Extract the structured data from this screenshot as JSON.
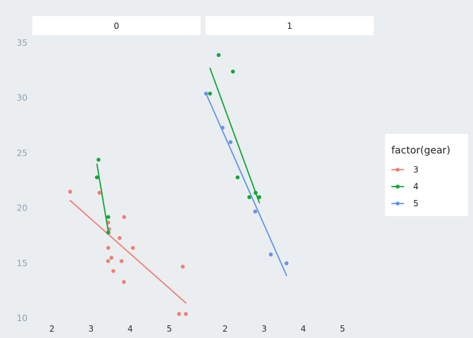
{
  "chart_data": {
    "type": "scatter",
    "facet_var": "am",
    "facets": [
      "0",
      "1"
    ],
    "xlabel": "",
    "ylabel": "",
    "xlim": [
      1.5,
      5.8
    ],
    "ylim": [
      9.5,
      35.7
    ],
    "x_ticks": [
      2,
      3,
      4,
      5
    ],
    "y_ticks": [
      10,
      15,
      20,
      25,
      30,
      35
    ],
    "grid": false,
    "legend": {
      "title": "factor(gear)",
      "position": "right",
      "entries": [
        {
          "label": "3",
          "color": "#F07F74"
        },
        {
          "label": "4",
          "color": "#13A538"
        },
        {
          "label": "5",
          "color": "#6495E8"
        }
      ]
    },
    "series": [
      {
        "name": "3",
        "color": "#F07F74",
        "facet": "0",
        "points": [
          [
            2.465,
            21.5
          ],
          [
            3.215,
            21.4
          ],
          [
            3.44,
            18.7
          ],
          [
            3.46,
            18.1
          ],
          [
            3.57,
            14.3
          ],
          [
            3.44,
            16.4
          ],
          [
            3.73,
            17.3
          ],
          [
            3.78,
            15.2
          ],
          [
            4.07,
            16.4
          ],
          [
            5.25,
            10.4
          ],
          [
            5.424,
            10.4
          ],
          [
            5.345,
            14.7
          ],
          [
            3.52,
            15.5
          ],
          [
            3.435,
            15.2
          ],
          [
            3.84,
            13.3
          ],
          [
            3.845,
            19.2
          ]
        ],
        "fit": [
          [
            2.465,
            20.7
          ],
          [
            5.424,
            11.4
          ]
        ]
      },
      {
        "name": "4",
        "color": "#13A538",
        "facet": "0",
        "points": [
          [
            3.19,
            24.4
          ],
          [
            3.15,
            22.8
          ],
          [
            3.44,
            19.2
          ],
          [
            3.44,
            17.8
          ]
        ],
        "fit": [
          [
            3.15,
            24.0
          ],
          [
            3.44,
            17.9
          ]
        ]
      },
      {
        "name": "4",
        "color": "#13A538",
        "facet": "1",
        "points": [
          [
            2.62,
            21.0
          ],
          [
            2.875,
            21.0
          ],
          [
            2.32,
            22.8
          ],
          [
            2.2,
            32.4
          ],
          [
            1.615,
            30.4
          ],
          [
            1.835,
            33.9
          ],
          [
            2.78,
            21.4
          ]
        ],
        "fit": [
          [
            1.615,
            32.7
          ],
          [
            2.875,
            20.5
          ]
        ]
      },
      {
        "name": "5",
        "color": "#6495E8",
        "facet": "1",
        "points": [
          [
            2.14,
            26.0
          ],
          [
            1.513,
            30.4
          ],
          [
            3.17,
            15.8
          ],
          [
            2.77,
            19.7
          ],
          [
            3.57,
            15.0
          ],
          [
            1.935,
            27.3
          ]
        ],
        "fit": [
          [
            1.513,
            30.4
          ],
          [
            3.57,
            13.9
          ]
        ]
      }
    ]
  }
}
